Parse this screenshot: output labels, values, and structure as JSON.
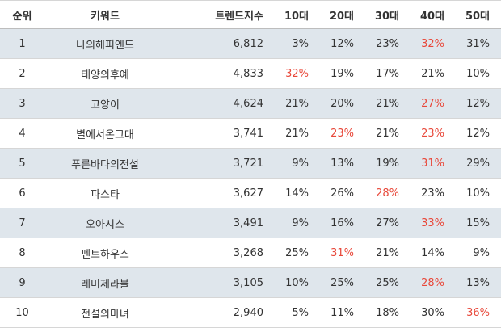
{
  "colors": {
    "row_alt": "#dfe6ec",
    "highlight": "#e8483a",
    "text": "#333333"
  },
  "headers": {
    "rank": "순위",
    "keyword": "키워드",
    "score": "트렌드지수",
    "age10": "10대",
    "age20": "20대",
    "age30": "30대",
    "age40": "40대",
    "age50": "50대"
  },
  "rows": [
    {
      "rank": "1",
      "keyword": "나의해피엔드",
      "score": "6,812",
      "ages": [
        "3%",
        "12%",
        "23%",
        "32%",
        "31%"
      ],
      "highlight": [
        3
      ]
    },
    {
      "rank": "2",
      "keyword": "태양의후예",
      "score": "4,833",
      "ages": [
        "32%",
        "19%",
        "17%",
        "21%",
        "10%"
      ],
      "highlight": [
        0
      ]
    },
    {
      "rank": "3",
      "keyword": "고양이",
      "score": "4,624",
      "ages": [
        "21%",
        "20%",
        "21%",
        "27%",
        "12%"
      ],
      "highlight": [
        3
      ]
    },
    {
      "rank": "4",
      "keyword": "별에서온그대",
      "score": "3,741",
      "ages": [
        "21%",
        "23%",
        "21%",
        "23%",
        "12%"
      ],
      "highlight": [
        1,
        3
      ]
    },
    {
      "rank": "5",
      "keyword": "푸른바다의전설",
      "score": "3,721",
      "ages": [
        "9%",
        "13%",
        "19%",
        "31%",
        "29%"
      ],
      "highlight": [
        3
      ]
    },
    {
      "rank": "6",
      "keyword": "파스타",
      "score": "3,627",
      "ages": [
        "14%",
        "26%",
        "28%",
        "23%",
        "10%"
      ],
      "highlight": [
        2
      ]
    },
    {
      "rank": "7",
      "keyword": "오아시스",
      "score": "3,491",
      "ages": [
        "9%",
        "16%",
        "27%",
        "33%",
        "15%"
      ],
      "highlight": [
        3
      ]
    },
    {
      "rank": "8",
      "keyword": "펜트하우스",
      "score": "3,268",
      "ages": [
        "25%",
        "31%",
        "21%",
        "14%",
        "9%"
      ],
      "highlight": [
        1
      ]
    },
    {
      "rank": "9",
      "keyword": "레미제라블",
      "score": "3,105",
      "ages": [
        "10%",
        "25%",
        "25%",
        "28%",
        "13%"
      ],
      "highlight": [
        3
      ]
    },
    {
      "rank": "10",
      "keyword": "전설의마녀",
      "score": "2,940",
      "ages": [
        "5%",
        "11%",
        "18%",
        "30%",
        "36%"
      ],
      "highlight": [
        4
      ]
    }
  ]
}
